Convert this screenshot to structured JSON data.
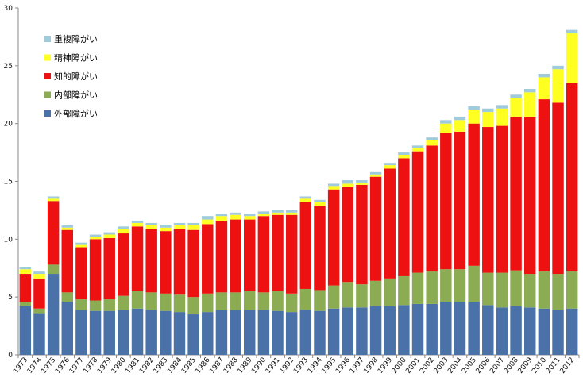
{
  "chart_data": {
    "type": "bar",
    "stacked": true,
    "title": "",
    "xlabel": "",
    "ylabel": "",
    "ylim": [
      0,
      30
    ],
    "yticks": [
      0,
      5,
      10,
      15,
      20,
      25,
      30
    ],
    "grid": false,
    "legend_position": "top-left",
    "categories": [
      "1973",
      "1974",
      "1975",
      "1976",
      "1977",
      "1978",
      "1979",
      "1980",
      "1981",
      "1982",
      "1983",
      "1984",
      "1985",
      "1986",
      "1987",
      "1988",
      "1989",
      "1990",
      "1991",
      "1992",
      "1993",
      "1994",
      "1995",
      "1996",
      "1997",
      "1998",
      "1999",
      "2000",
      "2001",
      "2002",
      "2003",
      "2004",
      "2005",
      "2006",
      "2007",
      "2008",
      "2009",
      "2010",
      "2011",
      "2012"
    ],
    "series": [
      {
        "name": "外部障がい",
        "color": "#4a72a8",
        "values": [
          4.2,
          3.6,
          7.0,
          4.6,
          3.9,
          3.8,
          3.8,
          3.9,
          4.0,
          3.9,
          3.8,
          3.7,
          3.5,
          3.7,
          3.9,
          3.9,
          3.9,
          3.9,
          3.8,
          3.7,
          3.9,
          3.8,
          4.0,
          4.1,
          4.1,
          4.2,
          4.2,
          4.3,
          4.4,
          4.4,
          4.6,
          4.6,
          4.6,
          4.3,
          4.1,
          4.2,
          4.1,
          4.0,
          3.9,
          4.0
        ]
      },
      {
        "name": "内部障がい",
        "color": "#8bac53",
        "values": [
          0.4,
          0.4,
          0.8,
          0.8,
          0.9,
          0.9,
          1.0,
          1.2,
          1.5,
          1.5,
          1.5,
          1.5,
          1.5,
          1.6,
          1.5,
          1.5,
          1.6,
          1.5,
          1.7,
          1.6,
          1.8,
          1.8,
          2.0,
          2.2,
          2.0,
          2.2,
          2.4,
          2.5,
          2.7,
          2.8,
          2.8,
          2.8,
          3.1,
          2.8,
          3.0,
          3.1,
          2.9,
          3.2,
          3.1,
          3.2
        ]
      },
      {
        "name": "知的障がい",
        "color": "#ee1111",
        "values": [
          2.4,
          2.6,
          5.5,
          5.4,
          4.5,
          5.3,
          5.3,
          5.4,
          5.6,
          5.5,
          5.4,
          5.7,
          5.8,
          6.0,
          6.2,
          6.3,
          6.2,
          6.6,
          6.6,
          6.8,
          7.5,
          7.3,
          8.3,
          8.2,
          8.6,
          9.0,
          9.5,
          10.2,
          10.5,
          10.9,
          11.8,
          11.9,
          12.3,
          12.6,
          12.7,
          13.3,
          13.6,
          14.9,
          14.8,
          16.3
        ]
      },
      {
        "name": "精神障がい",
        "color": "#ffff22",
        "values": [
          0.4,
          0.4,
          0.2,
          0.2,
          0.2,
          0.2,
          0.3,
          0.4,
          0.3,
          0.3,
          0.3,
          0.3,
          0.4,
          0.4,
          0.4,
          0.4,
          0.3,
          0.2,
          0.2,
          0.2,
          0.3,
          0.3,
          0.3,
          0.3,
          0.2,
          0.2,
          0.3,
          0.3,
          0.3,
          0.5,
          0.8,
          1.0,
          1.2,
          1.3,
          1.5,
          1.6,
          2.1,
          1.9,
          2.9,
          4.3
        ]
      },
      {
        "name": "重複障がい",
        "color": "#9fcbdd",
        "values": [
          0.2,
          0.2,
          0.2,
          0.2,
          0.2,
          0.2,
          0.2,
          0.2,
          0.2,
          0.2,
          0.2,
          0.2,
          0.2,
          0.3,
          0.2,
          0.2,
          0.2,
          0.2,
          0.2,
          0.2,
          0.2,
          0.2,
          0.2,
          0.3,
          0.2,
          0.2,
          0.2,
          0.2,
          0.2,
          0.2,
          0.3,
          0.3,
          0.3,
          0.3,
          0.3,
          0.3,
          0.3,
          0.3,
          0.3,
          0.3
        ]
      }
    ],
    "legend_order": [
      "重複障がい",
      "精神障がい",
      "知的障がい",
      "内部障がい",
      "外部障がい"
    ]
  }
}
